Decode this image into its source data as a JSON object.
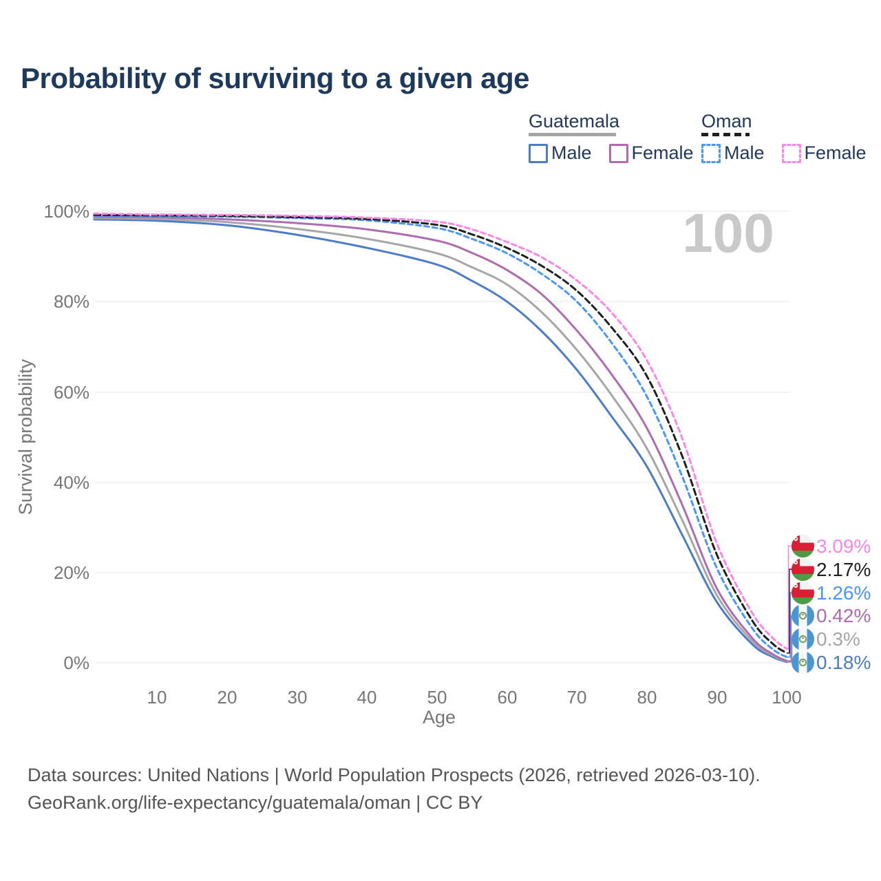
{
  "title": "Probability of surviving to a given age",
  "watermark": "100",
  "legend": {
    "groups": [
      {
        "country": "Guatemala",
        "line_style": "solid",
        "items": [
          {
            "label": "Male",
            "series": "gtMale"
          },
          {
            "label": "Female",
            "series": "gtFemale"
          }
        ]
      },
      {
        "country": "Oman",
        "line_style": "dashed",
        "items": [
          {
            "label": "Male",
            "series": "omMale"
          },
          {
            "label": "Female",
            "series": "omFemale"
          }
        ]
      }
    ]
  },
  "chart_data": {
    "type": "line",
    "title": "Probability of surviving to a given age",
    "xlabel": "Age",
    "ylabel": "Survival probability",
    "xlim": [
      1,
      100
    ],
    "ylim": [
      0,
      100
    ],
    "grid": "horizontal",
    "x_ticks": [
      "10",
      "20",
      "30",
      "40",
      "50",
      "60",
      "70",
      "80",
      "90",
      "100"
    ],
    "y_ticks": [
      "100%",
      "80%",
      "60%",
      "40%",
      "20%",
      "0%"
    ],
    "ages": [
      1,
      10,
      20,
      30,
      40,
      50,
      55,
      60,
      65,
      70,
      75,
      80,
      85,
      90,
      95,
      98,
      100
    ],
    "series": [
      {
        "id": "gtMale",
        "name": "Guatemala Male",
        "country": "Guatemala",
        "sex": "Male",
        "color": "#4a7cc7",
        "dash": null,
        "row": 5,
        "end_label": "0.18%",
        "values": [
          98.2,
          97.9,
          96.9,
          94.8,
          91.9,
          88.2,
          84.6,
          80.0,
          73.4,
          64.9,
          54.5,
          43.5,
          28.5,
          13.5,
          4.2,
          1.3,
          0.18
        ]
      },
      {
        "id": "gtAll",
        "name": "Guatemala Both sexes",
        "country": "Guatemala",
        "sex": "All",
        "color": "#a6a6a6",
        "dash": null,
        "row": 4,
        "end_label": "0.3%",
        "values": [
          98.5,
          98.3,
          97.6,
          96.1,
          93.9,
          90.7,
          87.6,
          83.8,
          77.6,
          69.3,
          59.2,
          47.5,
          31.8,
          15.0,
          4.9,
          1.6,
          0.3
        ]
      },
      {
        "id": "gtFemale",
        "name": "Guatemala Female",
        "country": "Guatemala",
        "sex": "Female",
        "color": "#ae6bb0",
        "dash": null,
        "row": 3,
        "end_label": "0.42%",
        "values": [
          98.8,
          98.7,
          98.2,
          97.4,
          96.0,
          93.5,
          90.8,
          87.0,
          81.6,
          73.6,
          63.8,
          52.0,
          35.2,
          16.5,
          5.6,
          1.9,
          0.42
        ]
      },
      {
        "id": "omMale",
        "name": "Oman Male",
        "country": "Oman",
        "sex": "Male",
        "color": "#4896f5",
        "dash": "7 5",
        "row": 2,
        "end_label": "1.26%",
        "values": [
          99.0,
          98.9,
          98.8,
          98.5,
          98.0,
          96.3,
          93.9,
          90.7,
          86.1,
          80.0,
          70.8,
          59.0,
          41.5,
          21.0,
          7.8,
          3.0,
          1.26
        ]
      },
      {
        "id": "omAll",
        "name": "Oman Both sexes",
        "country": "Oman",
        "sex": "All",
        "color": "#1f1f1f",
        "dash": "9 5",
        "row": 1,
        "end_label": "2.17%",
        "values": [
          99.2,
          99.1,
          99.0,
          98.7,
          98.3,
          97.0,
          94.9,
          91.9,
          87.9,
          82.4,
          74.2,
          63.5,
          46.0,
          24.0,
          9.5,
          4.2,
          2.17
        ]
      },
      {
        "id": "omFemale",
        "name": "Oman Female",
        "country": "Oman",
        "sex": "Female",
        "color": "#fc85ea",
        "dash": "7 5",
        "row": 0,
        "end_label": "3.09%",
        "values": [
          99.5,
          99.3,
          99.2,
          99.0,
          98.6,
          97.7,
          96.0,
          93.2,
          89.8,
          84.7,
          77.5,
          67.0,
          50.0,
          26.5,
          11.2,
          5.5,
          3.09
        ]
      }
    ]
  },
  "footer": {
    "line1": "Data sources: United Nations | World Population Prospects (2026, retrieved 2026-03-10).",
    "line2": "GeoRank.org/life-expectancy/guatemala/oman | CC BY"
  }
}
